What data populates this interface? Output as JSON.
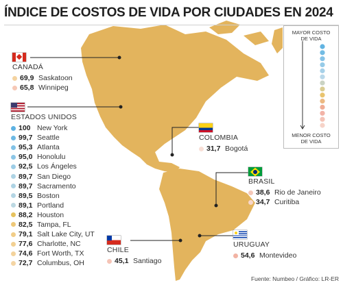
{
  "title": "ÍNDICE DE COSTOS DE VIDA POR CIUDADES EN 2024",
  "source": "Fuente: Numbeo / Gráfico: LR-ER",
  "legend": {
    "top_label_1": "MAYOR COSTO",
    "top_label_2": "DE VIDA",
    "bottom_label_1": "MENOR COSTO",
    "bottom_label_2": "DE VIDA"
  },
  "colors": {
    "map": "#e3b45d",
    "scale": [
      "#62b4e2",
      "#8fc8e8",
      "#bcd9ea",
      "#e8c66b",
      "#f1a99d",
      "#f6d3c8"
    ]
  },
  "chart_data": {
    "type": "table",
    "title": "ÍNDICE DE COSTOS DE VIDA POR CIUDADES EN 2024",
    "countries": [
      {
        "name": "CANADÁ",
        "flag": "canada",
        "cities": [
          {
            "city": "Saskatoon",
            "value": "69,9",
            "color": "#f4d3a0"
          },
          {
            "city": "Winnipeg",
            "value": "65,8",
            "color": "#f6c8b6"
          }
        ]
      },
      {
        "name": "ESTADOS UNIDOS",
        "flag": "usa",
        "cities": [
          {
            "city": "New York",
            "value": "100",
            "color": "#5db2e3"
          },
          {
            "city": "Seattle",
            "value": "99,7",
            "color": "#6db9e4"
          },
          {
            "city": "Atlanta",
            "value": "95,3",
            "color": "#82c2e6"
          },
          {
            "city": "Honolulu",
            "value": "95,0",
            "color": "#8cc6e6"
          },
          {
            "city": "Los Ángeles",
            "value": "92,5",
            "color": "#9dcde6"
          },
          {
            "city": "San Diego",
            "value": "89,7",
            "color": "#aed3e4"
          },
          {
            "city": "Sacramento",
            "value": "89,7",
            "color": "#aed3e4"
          },
          {
            "city": "Boston",
            "value": "89,5",
            "color": "#b4d5e4"
          },
          {
            "city": "Portland",
            "value": "89,1",
            "color": "#bcd8e2"
          },
          {
            "city": "Houston",
            "value": "88,2",
            "color": "#e6c25e"
          },
          {
            "city": "Tampa, FL",
            "value": "82,5",
            "color": "#eec878"
          },
          {
            "city": "Salt Lake City, UT",
            "value": "79,1",
            "color": "#f1cd88"
          },
          {
            "city": "Charlotte, NC",
            "value": "77,6",
            "color": "#f2d092"
          },
          {
            "city": "Fort Worth, TX",
            "value": "74,6",
            "color": "#f3d39c"
          },
          {
            "city": "Columbus, OH",
            "value": "72,7",
            "color": "#f4d5a4"
          }
        ]
      },
      {
        "name": "COLOMBIA",
        "flag": "colombia",
        "cities": [
          {
            "city": "Bogotá",
            "value": "31,7",
            "color": "#f8dfd6"
          }
        ]
      },
      {
        "name": "BRASIL",
        "flag": "brasil",
        "cities": [
          {
            "city": "Rio de Janeiro",
            "value": "38,6",
            "color": "#f5c8b9"
          },
          {
            "city": "Curitiba",
            "value": "34,7",
            "color": "#f7d6cb"
          }
        ]
      },
      {
        "name": "URUGUAY",
        "flag": "uruguay",
        "cities": [
          {
            "city": "Montevideo",
            "value": "54,6",
            "color": "#f2b3a4"
          }
        ]
      },
      {
        "name": "CHILE",
        "flag": "chile",
        "cities": [
          {
            "city": "Santiago",
            "value": "45,1",
            "color": "#f5c4b6"
          }
        ]
      }
    ]
  }
}
